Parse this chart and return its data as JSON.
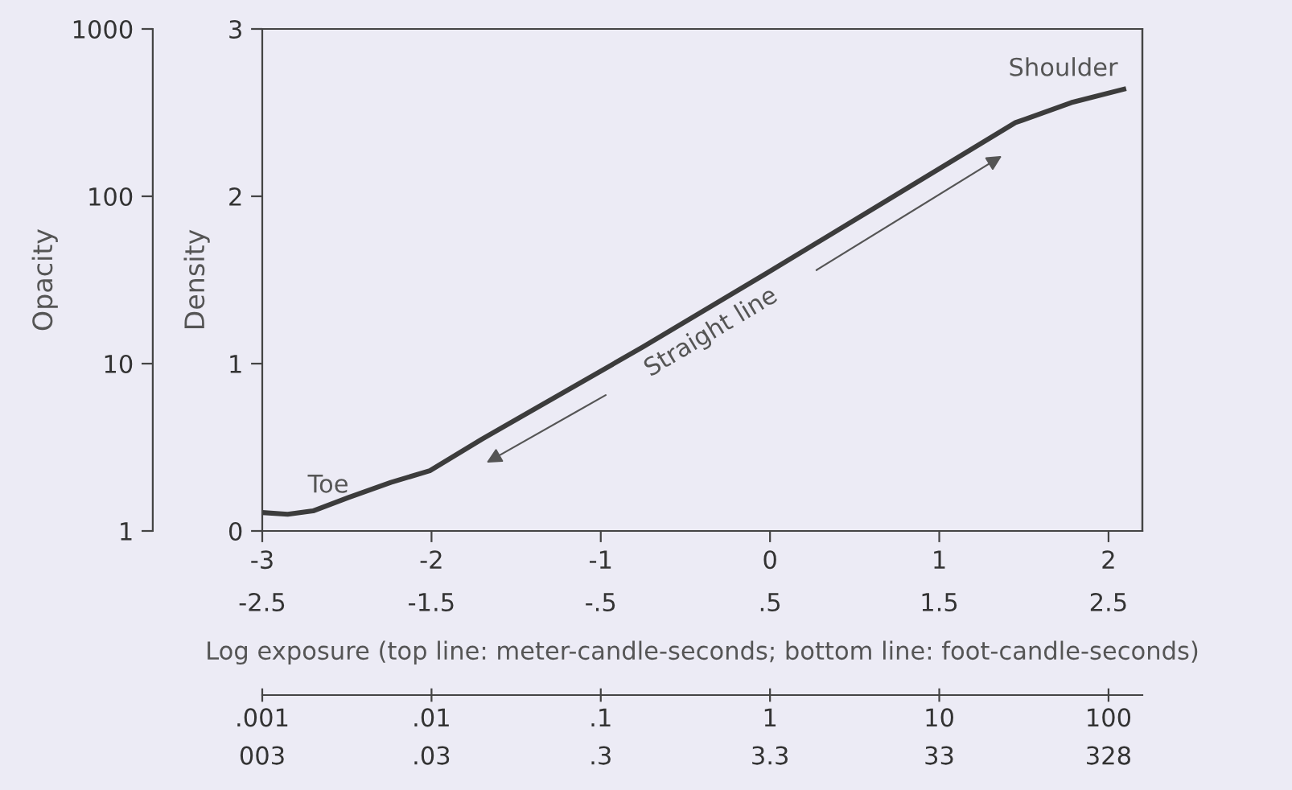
{
  "chart_data": {
    "type": "line",
    "xlabel": "Log exposure (top line: meter-candle-seconds; bottom line: foot-candle-seconds)",
    "ylabel": "Density",
    "y2label": "Opacity",
    "xlim": [
      -3,
      2.2
    ],
    "xticks": [
      -3,
      -2,
      -1,
      0,
      1,
      2
    ],
    "x2lim": [
      -2.5,
      2.7
    ],
    "x2ticks": [
      -2.5,
      -1.5,
      {
        "value": -0.5,
        "label": "-.5"
      },
      {
        "value": 0.5,
        "label": ".5"
      },
      1.5,
      2.5
    ],
    "ylim": [
      0,
      3
    ],
    "yticks": [
      0,
      1,
      2,
      3
    ],
    "y2lim": [
      1,
      1000
    ],
    "y2ticks": [
      1,
      10,
      100,
      1000
    ],
    "log": "y2",
    "grid": false,
    "marker": "none",
    "line_style": "solid",
    "series": [
      {
        "color": "#3c3c3c",
        "x": [
          -3,
          -2.85,
          -2.7,
          -2.49,
          -2.24,
          -2.01,
          -1.7,
          -0.75,
          -0.02,
          1.45,
          1.78,
          2.09
        ],
        "values": [
          0.11,
          0.1,
          0.12,
          0.2,
          0.29,
          0.36,
          0.55,
          1.1,
          1.54,
          2.44,
          2.56,
          2.64
        ]
      }
    ],
    "annotations": [
      "Toe",
      "Shoulder",
      "Straight line",
      ".001",
      ".01",
      ".1",
      "1",
      "10",
      "100",
      "003",
      ".03",
      ".3",
      "3.3",
      "33",
      "328"
    ]
  }
}
